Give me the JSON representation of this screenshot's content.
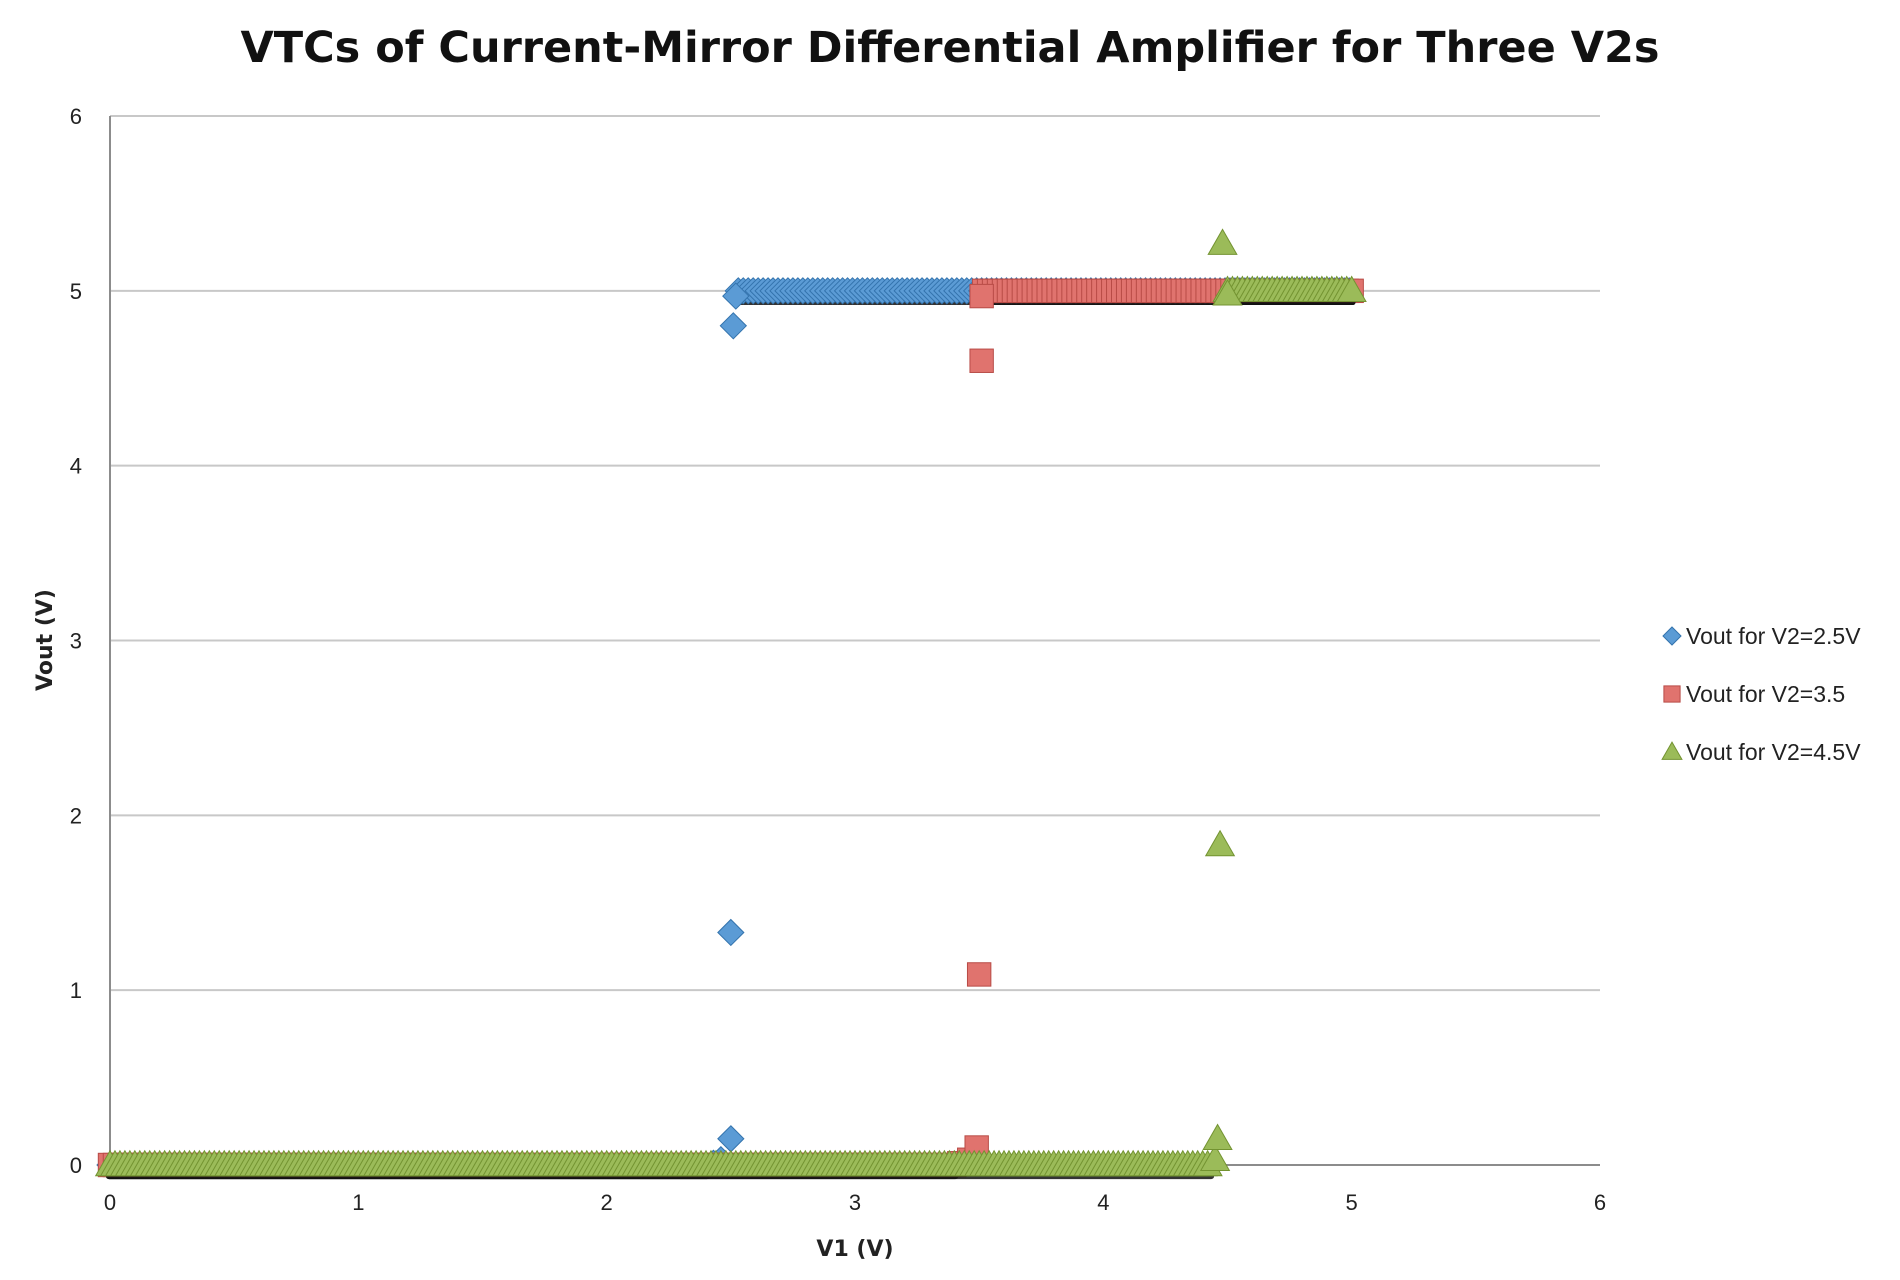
{
  "chart_data": {
    "type": "scatter",
    "title": "VTCs of Current-Mirror Differential Amplifier for Three V2s",
    "xlabel": "V1 (V)",
    "ylabel": "Vout (V)",
    "xlim": [
      0,
      6
    ],
    "ylim": [
      0,
      6
    ],
    "xticks": [
      "0",
      "1",
      "2",
      "3",
      "4",
      "5",
      "6"
    ],
    "yticks": [
      "0",
      "1",
      "2",
      "3",
      "4",
      "5",
      "6"
    ],
    "grid": "horizontal",
    "legend_position": "right",
    "series": [
      {
        "name": "Vout for V2=2.5V",
        "marker": "diamond",
        "color": "#5b9bd5",
        "sweep_low": {
          "from": 0,
          "to": 2.4,
          "step": 0.02,
          "y": 0
        },
        "sweep_high": {
          "from": 2.53,
          "to": 5.0,
          "step": 0.02,
          "y": 5.0
        },
        "points": [
          [
            2.43,
            0.01
          ],
          [
            2.46,
            0.03
          ],
          [
            2.5,
            0.15
          ],
          [
            2.5,
            1.33
          ],
          [
            2.51,
            4.8
          ],
          [
            2.52,
            4.97
          ]
        ]
      },
      {
        "name": "Vout for V2=3.5",
        "marker": "square",
        "color": "#e0736e",
        "sweep_low": {
          "from": 0,
          "to": 3.4,
          "step": 0.02,
          "y": 0
        },
        "sweep_high": {
          "from": 3.52,
          "to": 5.0,
          "step": 0.02,
          "y": 5.0
        },
        "points": [
          [
            3.42,
            0.01
          ],
          [
            3.46,
            0.03
          ],
          [
            3.49,
            0.1
          ],
          [
            3.5,
            1.09
          ],
          [
            3.51,
            4.6
          ],
          [
            3.51,
            4.97
          ]
        ]
      },
      {
        "name": "Vout for V2=4.5V",
        "marker": "triangle",
        "color": "#9bbb59",
        "sweep_low": {
          "from": 0,
          "to": 4.43,
          "step": 0.02,
          "y": 0
        },
        "sweep_high": {
          "from": 4.5,
          "to": 5.0,
          "step": 0.02,
          "y": 5.0
        },
        "points": [
          [
            4.45,
            0.03
          ],
          [
            4.46,
            0.15
          ],
          [
            4.47,
            1.83
          ],
          [
            4.48,
            5.27
          ],
          [
            4.5,
            4.98
          ]
        ]
      }
    ]
  }
}
